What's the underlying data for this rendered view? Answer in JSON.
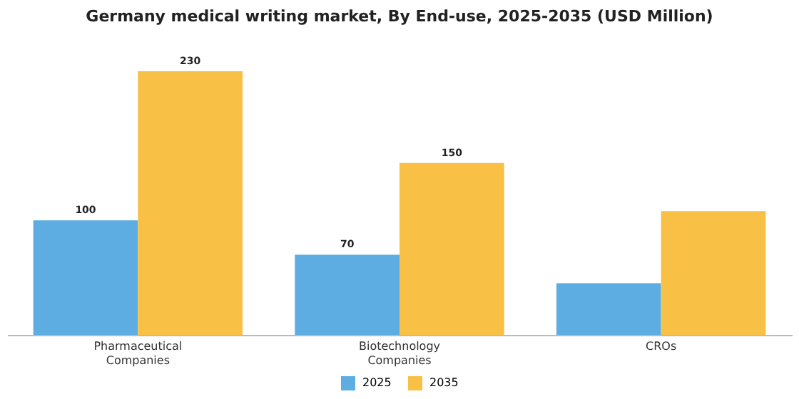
{
  "chart_data": {
    "type": "bar",
    "title": "Germany medical writing market, By End-use, 2025-2035 (USD Million)",
    "categories": [
      "Pharmaceutical Companies",
      "Biotechnology Companies",
      "CROs"
    ],
    "series": [
      {
        "name": "2025",
        "color": "#5dade2",
        "values": [
          100,
          70,
          45
        ],
        "value_labels": [
          "100",
          "70",
          null
        ]
      },
      {
        "name": "2035",
        "color": "#f8c045",
        "values": [
          230,
          150,
          108
        ],
        "value_labels": [
          "230",
          "150",
          null
        ]
      }
    ],
    "legend": "bottom"
  }
}
